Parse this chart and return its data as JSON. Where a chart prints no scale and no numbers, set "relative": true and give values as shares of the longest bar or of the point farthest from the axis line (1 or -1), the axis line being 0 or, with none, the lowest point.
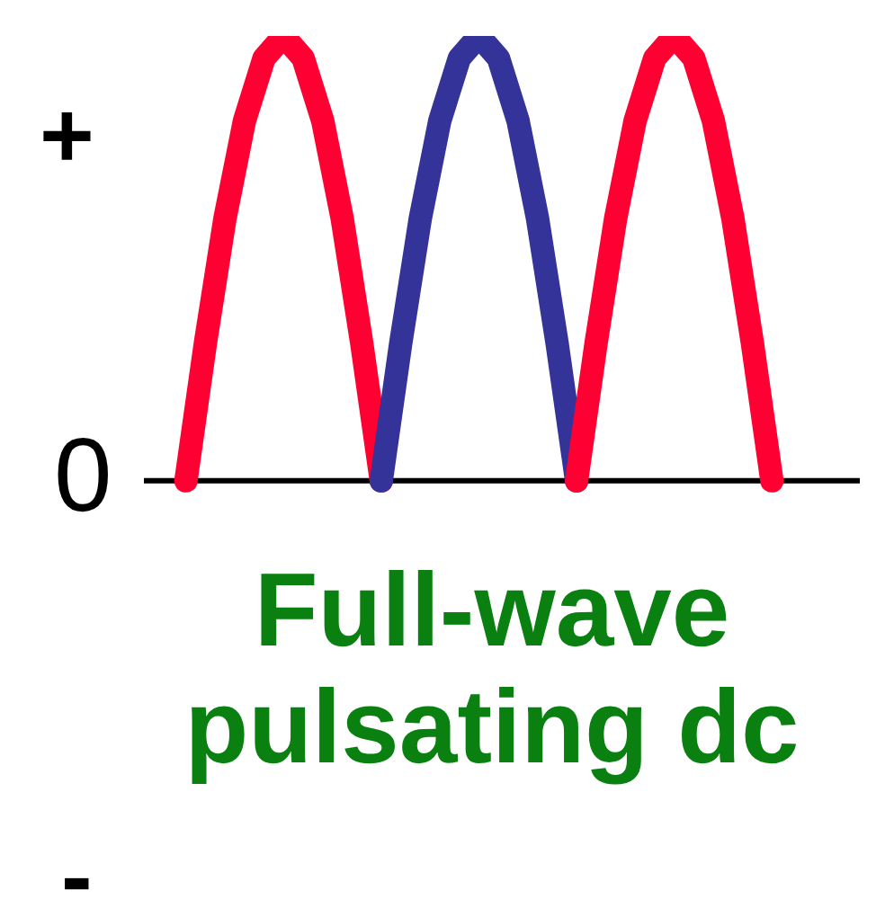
{
  "chart_data": {
    "type": "line",
    "title": "Full-wave pulsating dc",
    "relative": true,
    "annotations": [
      "+",
      "0",
      "-"
    ],
    "categories": [
      null,
      null,
      null,
      null,
      null,
      null,
      null,
      null,
      null,
      null,
      null,
      null,
      null,
      null,
      null,
      null,
      null,
      null,
      null,
      null,
      null,
      null,
      null,
      null,
      null,
      null,
      null,
      null,
      null,
      null,
      null
    ],
    "series": [
      {
        "color": "#ff0033",
        "values": [
          0,
          0.31,
          0.59,
          0.81,
          0.95,
          1,
          0.95,
          0.81,
          0.59,
          0.31,
          0,
          null,
          null,
          null,
          null,
          null,
          null,
          null,
          null,
          null,
          null,
          null,
          null,
          null,
          null,
          null,
          null,
          null,
          null,
          null,
          null
        ]
      },
      {
        "color": "#333399",
        "values": [
          null,
          null,
          null,
          null,
          null,
          null,
          null,
          null,
          null,
          null,
          0,
          0.31,
          0.59,
          0.81,
          0.95,
          1,
          0.95,
          0.81,
          0.59,
          0.31,
          0,
          null,
          null,
          null,
          null,
          null,
          null,
          null,
          null,
          null,
          null
        ]
      },
      {
        "color": "#ff0033",
        "values": [
          null,
          null,
          null,
          null,
          null,
          null,
          null,
          null,
          null,
          null,
          null,
          null,
          null,
          null,
          null,
          null,
          null,
          null,
          null,
          null,
          0,
          0.31,
          0.59,
          0.81,
          0.95,
          1,
          0.95,
          0.81,
          0.59,
          0.31,
          0
        ]
      }
    ]
  }
}
